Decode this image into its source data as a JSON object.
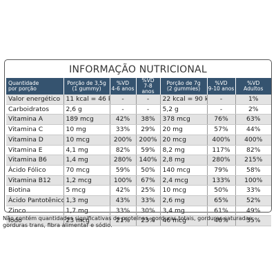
{
  "title": "INFORMAÇÃO NUTRICIONAL",
  "headers": [
    [
      "Quantidade",
      "por porção"
    ],
    [
      "Porção de 3,5g",
      "(1 gummy)"
    ],
    [
      "%VD",
      "4-6 anos"
    ],
    [
      "%VD",
      "7-8 anos"
    ],
    [
      "Porção de 7g",
      "(2 gummies)"
    ],
    [
      "%VD",
      "9-10 anos"
    ],
    [
      "%VD",
      "Adultos"
    ]
  ],
  "rows": [
    [
      "Valor energético",
      "11 kcal = 46 kJ",
      "-",
      "-",
      "22 kcal = 90 kJ",
      "-",
      "1%"
    ],
    [
      "Carboidratos",
      "2,6 g",
      "-",
      "-",
      "5,2 g",
      "-",
      "2%"
    ],
    [
      "Vitamina A",
      "189 mcg",
      "42%",
      "38%",
      "378 mcg",
      "76%",
      "63%"
    ],
    [
      "Vitamina C",
      "10 mg",
      "33%",
      "29%",
      "20 mg",
      "57%",
      "44%"
    ],
    [
      "Vitamina D",
      "10 mcg",
      "200%",
      "200%",
      "20 mcg",
      "400%",
      "400%"
    ],
    [
      "Vitamina E",
      "4,1 mg",
      "82%",
      "59%",
      "8,2 mg",
      "117%",
      "82%"
    ],
    [
      "Vitamina B6",
      "1,4 mg",
      "280%",
      "140%",
      "2,8 mg",
      "280%",
      "215%"
    ],
    [
      "Ácido Fólico",
      "70 mcg",
      "59%",
      "50%",
      "140 mcg",
      "79%",
      "58%"
    ],
    [
      "Vitamina B12",
      "1,2 mcg",
      "100%",
      "67%",
      "2,4 mcg",
      "133%",
      "100%"
    ],
    [
      "Biotina",
      "5 mcg",
      "42%",
      "25%",
      "10 mcg",
      "50%",
      "33%"
    ],
    [
      "Ácido Pantotênico",
      "1,3 mg",
      "43%",
      "33%",
      "2,6 mg",
      "65%",
      "52%"
    ],
    [
      "Zinco",
      "1,7 mg",
      "33%",
      "30%",
      "3,4 mg",
      "61%",
      "49%"
    ],
    [
      "Iodo",
      "23 mcg",
      "21%",
      "23%",
      "46 mcg",
      "46%",
      "35%"
    ]
  ],
  "footnote": "Não contém quantidades significativas de proteínas, gorduras totais, gorduras saturadas, gorduras trans, fibra alimentar e sódio."
}
